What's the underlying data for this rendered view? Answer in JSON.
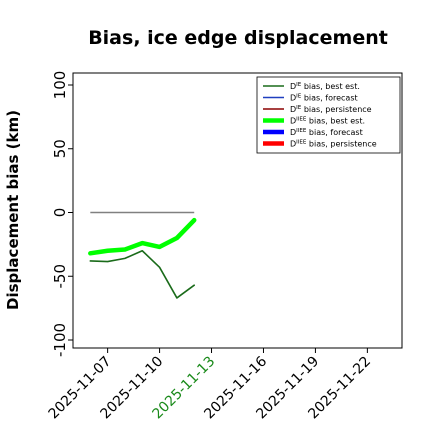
{
  "chart_data": {
    "type": "line",
    "title": "Bias, ice edge displacement",
    "xlabel": "",
    "ylabel": "Displacement bias (km)",
    "ylim": [
      -100,
      100
    ],
    "yticks": [
      -100,
      -50,
      0,
      50,
      100
    ],
    "xlim": [
      "2025-11-05",
      "2025-11-24"
    ],
    "xticks": [
      {
        "label": "2025-11-07",
        "date": "2025-11-07",
        "color": "#000000"
      },
      {
        "label": "2025-11-10",
        "date": "2025-11-10",
        "color": "#000000"
      },
      {
        "label": "2025-11-13",
        "date": "2025-11-13",
        "color": "#1a8a1a"
      },
      {
        "label": "2025-11-16",
        "date": "2025-11-16",
        "color": "#000000"
      },
      {
        "label": "2025-11-19",
        "date": "2025-11-19",
        "color": "#000000"
      },
      {
        "label": "2025-11-22",
        "date": "2025-11-22",
        "color": "#000000"
      }
    ],
    "legend_position": "top-right",
    "series": [
      {
        "name": "bias, best est.",
        "sym": "D",
        "sup": "IE",
        "color": "#1a6b1a",
        "width": 1.6,
        "x": [
          "2025-11-06",
          "2025-11-07",
          "2025-11-08",
          "2025-11-09",
          "2025-11-10",
          "2025-11-11",
          "2025-11-12"
        ],
        "values": [
          -38,
          -38.5,
          -36,
          -30,
          -43,
          -67,
          -57
        ]
      },
      {
        "name": "bias, forecast",
        "sym": "D",
        "sup": "IE",
        "color": "#1f3fbf",
        "width": 1.6,
        "x": [],
        "values": []
      },
      {
        "name": "bias, persistence",
        "sym": "D",
        "sup": "IE",
        "color": "#8b0000",
        "width": 1.6,
        "x": [],
        "values": []
      },
      {
        "name": "bias, best est.",
        "sym": "D",
        "sup": "IIEE",
        "color": "#00ff00",
        "width": 4.5,
        "x": [
          "2025-11-06",
          "2025-11-07",
          "2025-11-08",
          "2025-11-09",
          "2025-11-10",
          "2025-11-11",
          "2025-11-12"
        ],
        "values": [
          -32,
          -30,
          -29,
          -24,
          -27,
          -20,
          -6
        ]
      },
      {
        "name": "bias, forecast",
        "sym": "D",
        "sup": "IIEE",
        "color": "#0000ff",
        "width": 4.5,
        "x": [],
        "values": []
      },
      {
        "name": "bias, persistence",
        "sym": "D",
        "sup": "IIEE",
        "color": "#ff0000",
        "width": 4.5,
        "x": [],
        "values": []
      }
    ],
    "reference_line": {
      "x": [
        "2025-11-06",
        "2025-11-12"
      ],
      "values": [
        0,
        0
      ],
      "color": "#808080"
    }
  }
}
